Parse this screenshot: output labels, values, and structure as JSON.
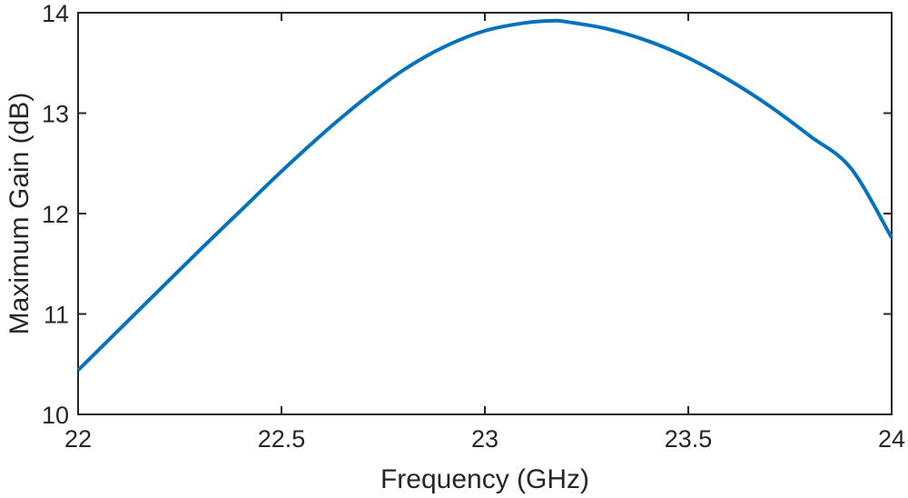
{
  "chart_data": {
    "type": "line",
    "title": "",
    "xlabel": "Frequency (GHz)",
    "ylabel": "Maximum Gain (dB)",
    "xlim": [
      22,
      24
    ],
    "ylim": [
      10,
      14
    ],
    "x_ticks": [
      22,
      22.5,
      23,
      23.5,
      24
    ],
    "x_tick_labels": [
      "22",
      "22.5",
      "23",
      "23.5",
      "24"
    ],
    "y_ticks": [
      10,
      11,
      12,
      13,
      14
    ],
    "y_tick_labels": [
      "10",
      "11",
      "12",
      "13",
      "14"
    ],
    "grid": false,
    "series": [
      {
        "color": "#0072BD",
        "x": [
          22.0,
          22.1,
          22.2,
          22.3,
          22.4,
          22.5,
          22.6,
          22.7,
          22.8,
          22.9,
          23.0,
          23.1,
          23.17,
          23.2,
          23.3,
          23.4,
          23.5,
          23.6,
          23.7,
          23.8,
          23.9,
          24.0
        ],
        "y": [
          10.44,
          10.84,
          11.24,
          11.64,
          12.03,
          12.42,
          12.79,
          13.13,
          13.43,
          13.66,
          13.82,
          13.9,
          13.92,
          13.91,
          13.84,
          13.72,
          13.55,
          13.33,
          13.07,
          12.77,
          12.45,
          11.76
        ]
      }
    ],
    "axis_color": "#262626"
  }
}
